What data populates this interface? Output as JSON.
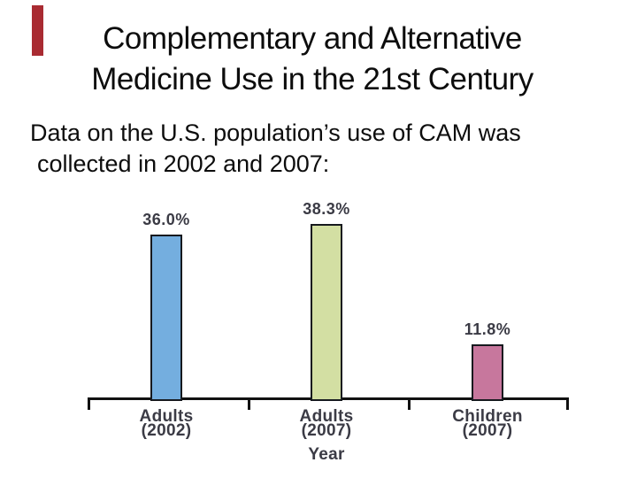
{
  "slide": {
    "accent_bar_color": "#A92B32",
    "text_color": "#0D0D0D",
    "title": {
      "line1": "Complementary and Alternative",
      "line2": "Medicine Use in the 21st Century"
    },
    "body": {
      "line1": "Data on the U.S. population’s use of CAM was",
      "line2": "collected in 2002 and 2007:"
    }
  },
  "chart_data": {
    "type": "bar",
    "title": "",
    "xlabel": "Year",
    "ylabel": "",
    "ylim": [
      0,
      40
    ],
    "grid": false,
    "legend": false,
    "value_unit": "%",
    "axis_color": "#111111",
    "bar_border_color": "#16191E",
    "label_color": "#3B3B45",
    "categories": [
      "Adults (2002)",
      "Adults (2007)",
      "Children (2007)"
    ],
    "values": [
      36.0,
      38.3,
      11.8
    ],
    "bars": [
      {
        "category_line1": "Adults",
        "category_line2": "(2002)",
        "value": 36.0,
        "label": "36.0%",
        "color": "#74AEDF"
      },
      {
        "category_line1": "Adults",
        "category_line2": "(2007)",
        "value": 38.3,
        "label": "38.3%",
        "color": "#D3DFA3"
      },
      {
        "category_line1": "Children",
        "category_line2": "(2007)",
        "value": 11.8,
        "label": "11.8%",
        "color": "#C7779D"
      }
    ]
  }
}
